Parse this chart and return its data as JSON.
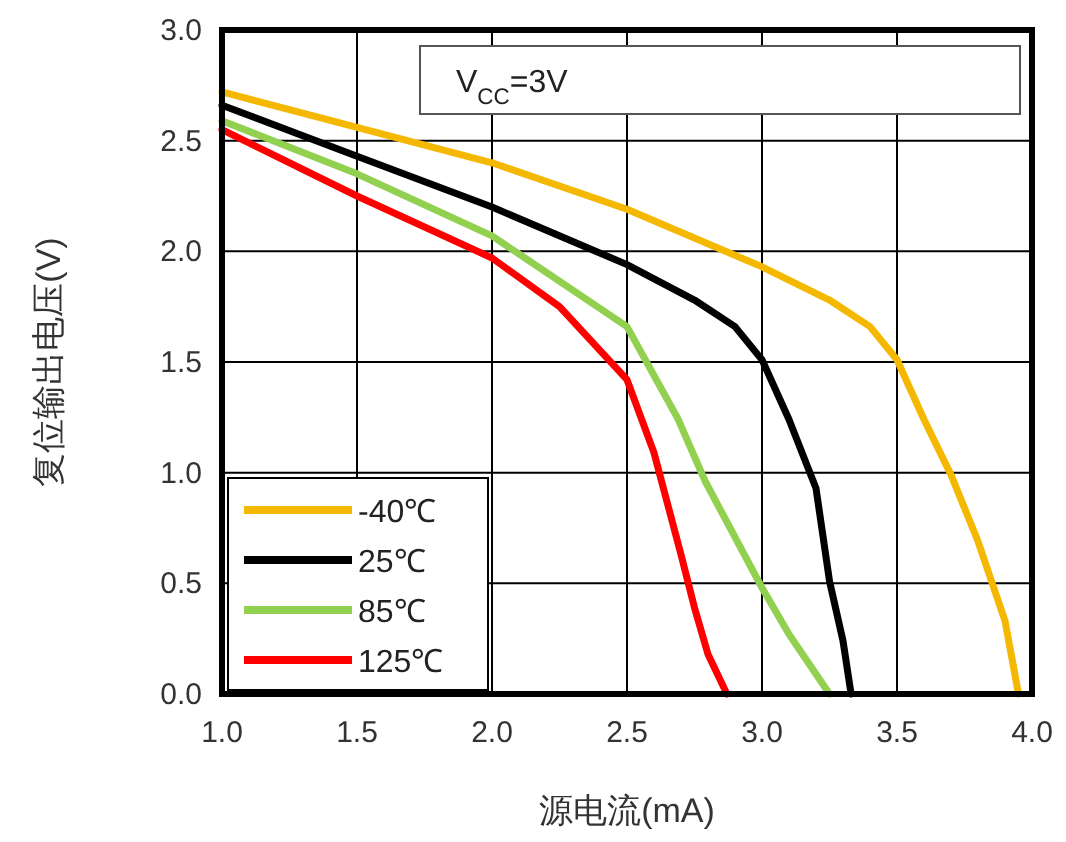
{
  "chart_data": {
    "type": "line",
    "xlabel": "源电流(mA)",
    "ylabel": "复位输出电压(V)",
    "annotations": [
      "V$_{CC}$=3V"
    ],
    "xlim": [
      1.0,
      4.0
    ],
    "xticks": [
      {
        "value": 1.0,
        "label": "1.0"
      },
      {
        "value": 1.5,
        "label": "1.5"
      },
      {
        "value": 2.0,
        "label": "2.0"
      },
      {
        "value": 2.5,
        "label": "2.5"
      },
      {
        "value": 3.0,
        "label": "3.0"
      },
      {
        "value": 3.5,
        "label": "3.5"
      },
      {
        "value": 4.0,
        "label": "4.0"
      }
    ],
    "ylim": [
      0,
      3.0
    ],
    "yticks": [
      {
        "value": 0,
        "label": "0.0"
      },
      {
        "value": 0.5,
        "label": "0.5"
      },
      {
        "value": 1.0,
        "label": "1.0"
      },
      {
        "value": 1.5,
        "label": "1.5"
      },
      {
        "value": 2.0,
        "label": "2.0"
      },
      {
        "value": 2.5,
        "label": "2.5"
      },
      {
        "value": 3.0,
        "label": "3.0"
      }
    ],
    "grid": true,
    "legend": "bottom left",
    "line_style": "solid",
    "marker": "none",
    "series": [
      {
        "name": "-40℃",
        "color": "#f5b800",
        "x": [
          1.0,
          1.5,
          2.0,
          2.5,
          3.0,
          3.25,
          3.4,
          3.5,
          3.6,
          3.7,
          3.8,
          3.9,
          3.95
        ],
        "values": [
          2.72,
          2.56,
          2.4,
          2.19,
          1.93,
          1.78,
          1.66,
          1.51,
          1.24,
          0.99,
          0.69,
          0.33,
          0
        ]
      },
      {
        "name": "25℃",
        "color": "#000000",
        "x": [
          1.0,
          1.5,
          2.0,
          2.5,
          2.75,
          2.9,
          3.0,
          3.1,
          3.2,
          3.25,
          3.3,
          3.33
        ],
        "values": [
          2.66,
          2.43,
          2.2,
          1.94,
          1.78,
          1.66,
          1.51,
          1.24,
          0.93,
          0.51,
          0.24,
          0
        ]
      },
      {
        "name": "85℃",
        "color": "#92d050",
        "x": [
          1.0,
          1.5,
          2.0,
          2.5,
          2.69,
          2.79,
          3.0,
          3.1,
          3.25
        ],
        "values": [
          2.59,
          2.35,
          2.07,
          1.66,
          1.24,
          0.96,
          0.48,
          0.27,
          0
        ]
      },
      {
        "name": "125℃",
        "color": "#ff0000",
        "x": [
          1.0,
          1.5,
          2.0,
          2.25,
          2.5,
          2.6,
          2.7,
          2.75,
          2.8,
          2.87
        ],
        "values": [
          2.55,
          2.25,
          1.97,
          1.75,
          1.42,
          1.09,
          0.63,
          0.39,
          0.18,
          0
        ]
      }
    ]
  }
}
